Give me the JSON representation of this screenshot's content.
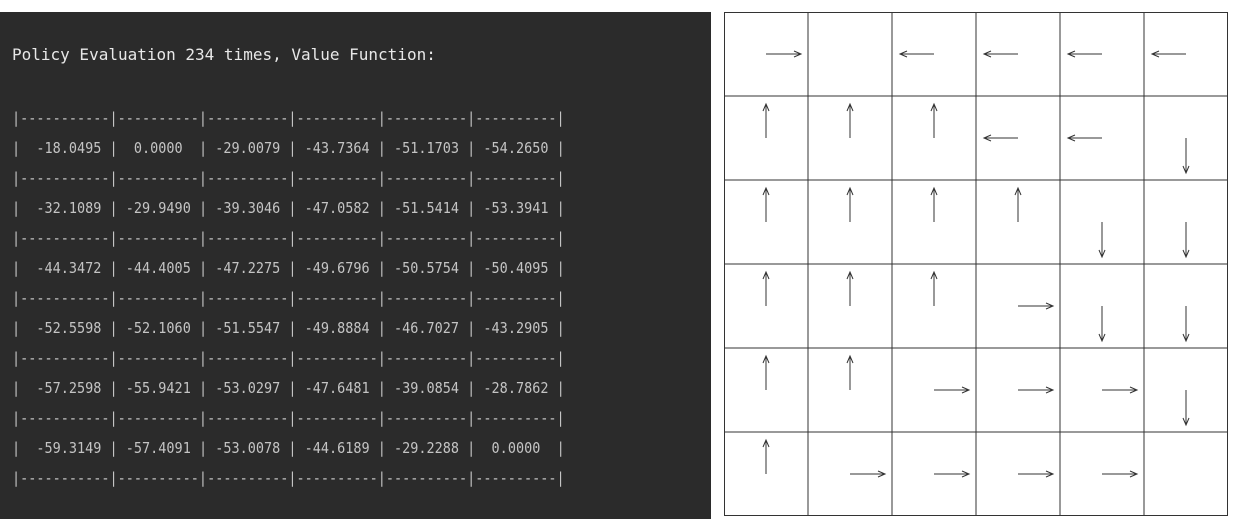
{
  "terminal": {
    "title": "Policy Evaluation 234 times, Value Function:",
    "value_table": [
      [
        "-18.0495",
        "0.0000",
        "-29.0079",
        "-43.7364",
        "-51.1703",
        "-54.2650"
      ],
      [
        "-32.1089",
        "-29.9490",
        "-39.3046",
        "-47.0582",
        "-51.5414",
        "-53.3941"
      ],
      [
        "-44.3472",
        "-44.4005",
        "-47.2275",
        "-49.6796",
        "-50.5754",
        "-50.4095"
      ],
      [
        "-52.5598",
        "-52.1060",
        "-51.5547",
        "-49.8884",
        "-46.7027",
        "-43.2905"
      ],
      [
        "-57.2598",
        "-55.9421",
        "-53.0297",
        "-47.6481",
        "-39.0854",
        "-28.7862"
      ],
      [
        "-59.3149",
        "-57.4091",
        "-53.0078",
        "-44.6189",
        "-29.2288",
        "0.0000"
      ]
    ],
    "colors": {
      "background": "#2b2b2b",
      "title_text": "#e8e8e8",
      "table_text": "#c4c4c4"
    }
  },
  "policy_grid": {
    "rows": 6,
    "cols": 6,
    "arrows": [
      [
        "right-arrow",
        "none",
        "left-arrow",
        "left-arrow",
        "left-arrow",
        "left-arrow"
      ],
      [
        "up-arrow",
        "up-arrow",
        "up-arrow",
        "left-arrow",
        "left-arrow",
        "down-arrow"
      ],
      [
        "up-arrow",
        "up-arrow",
        "up-arrow",
        "up-arrow",
        "down-arrow",
        "down-arrow"
      ],
      [
        "up-arrow",
        "up-arrow",
        "up-arrow",
        "right-arrow",
        "down-arrow",
        "down-arrow"
      ],
      [
        "up-arrow",
        "up-arrow",
        "right-arrow",
        "right-arrow",
        "right-arrow",
        "down-arrow"
      ],
      [
        "up-arrow",
        "right-arrow",
        "right-arrow",
        "right-arrow",
        "right-arrow",
        "none"
      ]
    ],
    "colors": {
      "line": "#333333",
      "arrow": "#333333",
      "background": "#ffffff"
    }
  }
}
